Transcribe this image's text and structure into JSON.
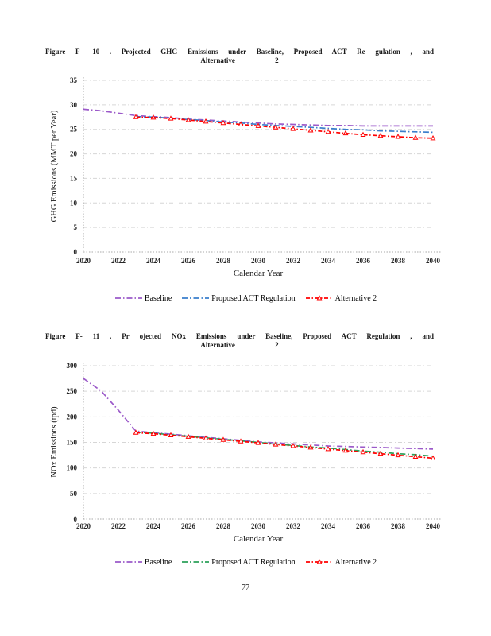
{
  "page": {
    "number": "77"
  },
  "figures": [
    {
      "caption_line1": "Figure F- 10 . Projected GHG Emissions under Baseline, Proposed ACT Re gulation , and",
      "caption_line2": "Alternative 2"
    },
    {
      "caption_line1": "Figure F- 11 . Pr ojected NOx Emissions under Baseline, Proposed ACT Regulation , and",
      "caption_line2": "Alternative 2"
    }
  ],
  "colors": {
    "baseline": "#9b59c9",
    "proposed_act_ghg": "#3a7ecb",
    "proposed_act_nox": "#2ca05a",
    "alternative2": "#ff0000",
    "gridline": "#d6d6d6",
    "axis": "#a8a8a8",
    "tick_text": "#262626"
  },
  "chart_data": [
    {
      "type": "line",
      "name": "ghg-emissions",
      "title": "Projected GHG Emissions under Baseline, Proposed ACT Regulation, and Alternative 2",
      "xlabel": "Calendar Year",
      "ylabel": "GHG Emissions (MMT  per Year)",
      "x": [
        2020,
        2021,
        2022,
        2023,
        2024,
        2025,
        2026,
        2027,
        2028,
        2029,
        2030,
        2031,
        2032,
        2033,
        2034,
        2035,
        2036,
        2037,
        2038,
        2039,
        2040
      ],
      "xticks": [
        2020,
        2022,
        2024,
        2026,
        2028,
        2030,
        2032,
        2034,
        2036,
        2038,
        2040
      ],
      "ylim": [
        0,
        35
      ],
      "yticks": [
        0,
        5,
        10,
        15,
        20,
        25,
        30,
        35
      ],
      "grid": "horizontal-dashed",
      "legend_position": "bottom",
      "series": [
        {
          "name": "Baseline",
          "color": "#9b59c9",
          "dash": "dashdot",
          "marker": "none",
          "values": [
            29.1,
            28.8,
            28.3,
            27.8,
            27.6,
            27.4,
            27.1,
            26.9,
            26.7,
            26.5,
            26.3,
            26.1,
            26.0,
            25.9,
            25.8,
            25.8,
            25.7,
            25.7,
            25.7,
            25.7,
            25.7
          ]
        },
        {
          "name": "Proposed ACT Regulation",
          "color": "#3a7ecb",
          "dash": "dashdot",
          "marker": "none",
          "values": [
            null,
            null,
            null,
            27.6,
            27.5,
            27.3,
            27.0,
            26.8,
            26.5,
            26.3,
            26.0,
            25.8,
            25.6,
            25.4,
            25.2,
            25.0,
            24.9,
            24.7,
            24.6,
            24.5,
            24.4
          ]
        },
        {
          "name": "Alternative 2",
          "color": "#ff0000",
          "dash": "dashdot",
          "marker": "triangle",
          "values": [
            null,
            null,
            null,
            27.5,
            27.4,
            27.2,
            26.9,
            26.6,
            26.3,
            26.0,
            25.7,
            25.4,
            25.1,
            24.8,
            24.5,
            24.2,
            23.9,
            23.7,
            23.5,
            23.3,
            23.2
          ]
        }
      ]
    },
    {
      "type": "line",
      "name": "nox-emissions",
      "title": "Projected NOx Emissions under Baseline, Proposed ACT Regulation, and Alternative 2",
      "xlabel": "Calendar Year",
      "ylabel": "NOx Emissions (tpd)",
      "x": [
        2020,
        2021,
        2022,
        2023,
        2024,
        2025,
        2026,
        2027,
        2028,
        2029,
        2030,
        2031,
        2032,
        2033,
        2034,
        2035,
        2036,
        2037,
        2038,
        2039,
        2040
      ],
      "xticks": [
        2020,
        2022,
        2024,
        2026,
        2028,
        2030,
        2032,
        2034,
        2036,
        2038,
        2040
      ],
      "ylim": [
        0,
        300
      ],
      "yticks": [
        0,
        50,
        100,
        150,
        200,
        250,
        300
      ],
      "grid": "horizontal-dashed",
      "legend_position": "bottom",
      "series": [
        {
          "name": "Baseline",
          "color": "#9b59c9",
          "dash": "dashdot",
          "marker": "none",
          "values": [
            275,
            251,
            213,
            172,
            169,
            166,
            163,
            160,
            157,
            154,
            151,
            149,
            147,
            145,
            143,
            142,
            141,
            140,
            139,
            138,
            137
          ]
        },
        {
          "name": "Proposed ACT Regulation",
          "color": "#2ca05a",
          "dash": "dashdot",
          "marker": "none",
          "values": [
            null,
            null,
            null,
            170,
            168,
            165,
            162,
            159,
            156,
            153,
            150,
            147,
            144,
            141,
            139,
            136,
            133,
            131,
            128,
            126,
            123
          ]
        },
        {
          "name": "Alternative 2",
          "color": "#ff0000",
          "dash": "dashdot",
          "marker": "triangle",
          "values": [
            null,
            null,
            null,
            169,
            167,
            164,
            161,
            158,
            155,
            152,
            149,
            146,
            143,
            140,
            137,
            134,
            131,
            128,
            125,
            122,
            119
          ]
        }
      ]
    }
  ]
}
